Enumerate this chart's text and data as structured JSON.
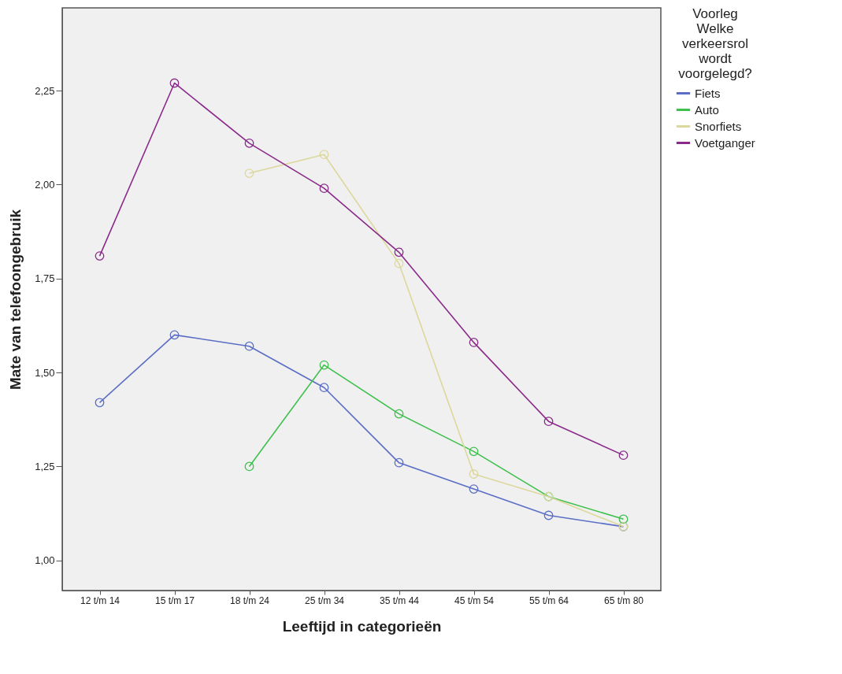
{
  "chart_data": {
    "type": "line",
    "xlabel": "Leeftijd in categorieën",
    "ylabel": "Mate van telefoongebruik",
    "legend_title": "Voorleg Welke verkeersrol wordt voorgelegd?",
    "categories": [
      "12 t/m 14",
      "15 t/m 17",
      "18 t/m 24",
      "25 t/m 34",
      "35 t/m 44",
      "45 t/m 54",
      "55 t/m 64",
      "65 t/m 80"
    ],
    "series": [
      {
        "name": "Fiets",
        "color": "#5b6ec6",
        "values": [
          1.42,
          1.6,
          1.57,
          1.46,
          1.26,
          1.19,
          1.12,
          1.09
        ]
      },
      {
        "name": "Auto",
        "color": "#3ec04c",
        "values": [
          null,
          null,
          1.25,
          1.52,
          1.39,
          1.29,
          1.17,
          1.11
        ]
      },
      {
        "name": "Snorfiets",
        "color": "#dcd89c",
        "values": [
          null,
          null,
          2.03,
          2.08,
          1.79,
          1.23,
          1.17,
          1.09
        ]
      },
      {
        "name": "Voetganger",
        "color": "#8a2a8a",
        "values": [
          1.81,
          2.27,
          2.11,
          1.99,
          1.82,
          1.58,
          1.37,
          1.28
        ]
      }
    ],
    "ylim": [
      0.92,
      2.47
    ],
    "yticks": [
      {
        "value": 1,
        "label": "1,00"
      },
      {
        "value": 1.25,
        "label": "1,25"
      },
      {
        "value": 1.5,
        "label": "1,50"
      },
      {
        "value": 1.75,
        "label": "1,75"
      },
      {
        "value": 2,
        "label": "2,00"
      },
      {
        "value": 2.25,
        "label": "2,25"
      }
    ],
    "grid": false,
    "legend": "right",
    "marker": "circle"
  }
}
